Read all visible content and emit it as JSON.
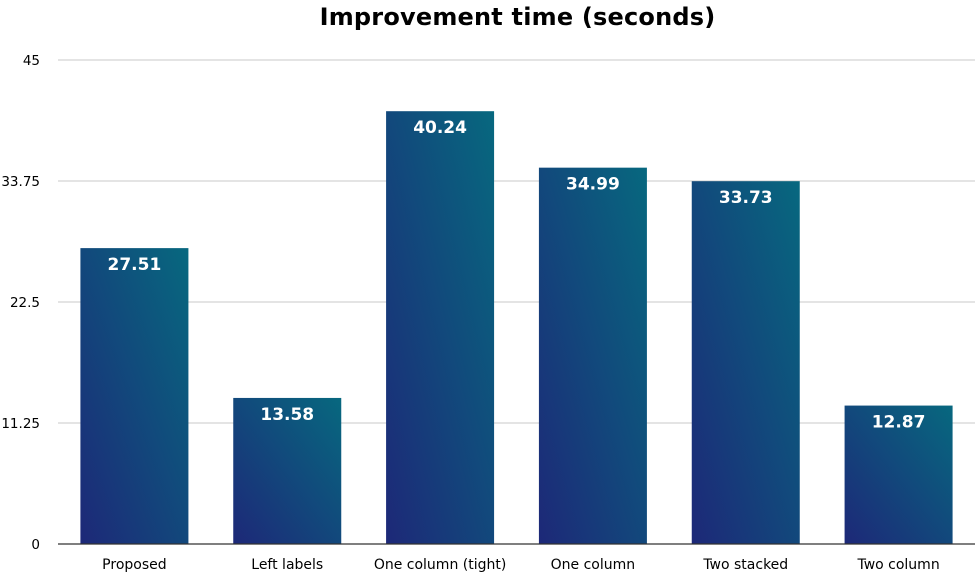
{
  "chart_data": {
    "type": "bar",
    "title": "Improvement time (seconds)",
    "xlabel": "",
    "ylabel": "",
    "categories": [
      "Proposed",
      "Left labels",
      "One column (tight)",
      "One column",
      "Two stacked",
      "Two column"
    ],
    "values": [
      27.51,
      13.58,
      40.24,
      34.99,
      33.73,
      12.87
    ],
    "value_labels": [
      "27.51",
      "13.58",
      "40.24",
      "34.99",
      "33.73",
      "12.87"
    ],
    "ylim": [
      0,
      45
    ],
    "yticks": [
      0,
      11.25,
      22.5,
      33.75,
      45
    ],
    "ytick_labels": [
      "0",
      "11.25",
      "22.5",
      "33.75",
      "45"
    ],
    "grid": true,
    "legend": "none",
    "colors": {
      "bar_top": "#07687f",
      "bar_bottom": "#1d2878",
      "grid": "#c8c8c8",
      "axis": "#333333",
      "value_label": "#ffffff"
    }
  }
}
